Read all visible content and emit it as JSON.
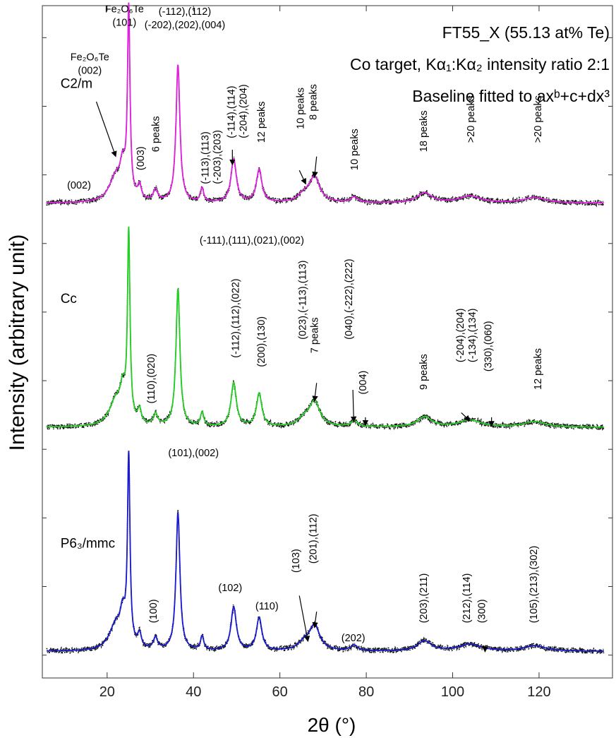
{
  "chart_data": {
    "type": "line",
    "title_lines": [
      "FT55_X (55.13 at% Te)",
      "Co target, Kα₁:Kα₂ intensity ratio 2:1",
      "Baseline fitted to axᵇ+c+dx³"
    ],
    "xlabel": "2θ (°)",
    "ylabel": "Intensity (arbitrary unit)",
    "xlim": [
      5,
      137
    ],
    "ylim": [
      -0.5,
      14.2
    ],
    "x_ticks": [
      20,
      40,
      60,
      80,
      100,
      120
    ],
    "grid": false,
    "colors": {
      "C2/m": "#e020e0",
      "Cc": "#22d022",
      "P63/mmc": "#1a1ad0",
      "data": "#111111"
    },
    "base_pattern": {
      "x_range": [
        6,
        135
      ],
      "background": 0.08,
      "peaks": [
        {
          "center": 22.0,
          "height": 0.55,
          "width": 1.8
        },
        {
          "center": 23.6,
          "height": 0.6,
          "width": 0.7
        },
        {
          "center": 25.0,
          "height": 4.1,
          "width": 0.35
        },
        {
          "center": 27.5,
          "height": 0.3,
          "width": 0.5
        },
        {
          "center": 31.2,
          "height": 0.25,
          "width": 0.6
        },
        {
          "center": 36.4,
          "height": 3.0,
          "width": 0.55
        },
        {
          "center": 42.0,
          "height": 0.3,
          "width": 0.45
        },
        {
          "center": 49.3,
          "height": 0.95,
          "width": 0.75
        },
        {
          "center": 55.2,
          "height": 0.72,
          "width": 0.75
        },
        {
          "center": 68.0,
          "height": 0.55,
          "width": 1.5
        },
        {
          "center": 65.5,
          "height": 0.15,
          "width": 1.5
        },
        {
          "center": 77.2,
          "height": 0.12,
          "width": 1.0
        },
        {
          "center": 93.5,
          "height": 0.22,
          "width": 2.0
        },
        {
          "center": 104.0,
          "height": 0.15,
          "width": 3.0
        },
        {
          "center": 119.0,
          "height": 0.12,
          "width": 3.0
        }
      ]
    },
    "series": [
      {
        "name": "C2/m",
        "offset": 9.8
      },
      {
        "name": "Cc",
        "offset": 4.9
      },
      {
        "name": "P63/mmc",
        "offset": 0.0
      }
    ],
    "annotations": [
      {
        "id": "c2m-fe-101",
        "lines": [
          "Fe₂O₆Te",
          "(101)"
        ],
        "x": 24.0,
        "y": 14.05,
        "rotate": 0
      },
      {
        "id": "c2m-fe-002",
        "lines": [
          "Fe₂O₆Te",
          "(002)"
        ],
        "x": 16.0,
        "y": 13.0,
        "rotate": 0
      },
      {
        "id": "c2m-002",
        "lines": [
          "(002)"
        ],
        "x": 13.5,
        "y": 10.2,
        "rotate": 0
      },
      {
        "id": "c2m-003",
        "lines": [
          "(003)"
        ],
        "x": 28.5,
        "y": 10.6,
        "rotate": -90
      },
      {
        "id": "c2m-6peaks",
        "lines": [
          "6 peaks"
        ],
        "x": 32.0,
        "y": 11.0,
        "rotate": -90
      },
      {
        "id": "c2m-112",
        "lines": [
          "(-112),(112)",
          "(-202),(202),(004)"
        ],
        "x": 38.0,
        "y": 14.0,
        "rotate": 0
      },
      {
        "id": "c2m-113",
        "lines": [
          "(-113),(113)",
          "(-203),(203)"
        ],
        "x": 43.5,
        "y": 10.3,
        "rotate": -90
      },
      {
        "id": "c2m-114",
        "lines": [
          "(-114),(114)",
          "(-204),(204)"
        ],
        "x": 49.5,
        "y": 11.3,
        "rotate": -90
      },
      {
        "id": "c2m-12peaks",
        "lines": [
          "12 peaks"
        ],
        "x": 56.5,
        "y": 11.2,
        "rotate": -90
      },
      {
        "id": "c2m-10peaks-a",
        "lines": [
          "10 peaks"
        ],
        "x": 65.5,
        "y": 11.5,
        "rotate": -90
      },
      {
        "id": "c2m-8peaks",
        "lines": [
          "8 peaks"
        ],
        "x": 68.5,
        "y": 11.7,
        "rotate": -90
      },
      {
        "id": "c2m-10peaks-b",
        "lines": [
          "10 peaks"
        ],
        "x": 78.0,
        "y": 10.6,
        "rotate": -90
      },
      {
        "id": "c2m-18peaks",
        "lines": [
          "18 peaks"
        ],
        "x": 94.0,
        "y": 11.0,
        "rotate": -90
      },
      {
        "id": "c2m-20peaks-a",
        "lines": [
          ">20 peaks"
        ],
        "x": 105.0,
        "y": 11.2,
        "rotate": -90
      },
      {
        "id": "c2m-20peaks-b",
        "lines": [
          ">20 peaks"
        ],
        "x": 120.5,
        "y": 11.2,
        "rotate": -90
      },
      {
        "id": "cc-111",
        "lines": [
          "(-111),(111),(021),(002)"
        ],
        "x": 53.5,
        "y": 9.0,
        "rotate": 0
      },
      {
        "id": "cc-110",
        "lines": [
          "(110),(020)"
        ],
        "x": 31.0,
        "y": 5.5,
        "rotate": -90
      },
      {
        "id": "cc-112",
        "lines": [
          "(-112),(112),(022)"
        ],
        "x": 50.5,
        "y": 6.5,
        "rotate": -90
      },
      {
        "id": "cc-200",
        "lines": [
          "(200),(130)"
        ],
        "x": 56.5,
        "y": 6.3,
        "rotate": -90
      },
      {
        "id": "cc-023",
        "lines": [
          "(023),(-113),(113)"
        ],
        "x": 66.0,
        "y": 6.9,
        "rotate": -90
      },
      {
        "id": "cc-7peaks",
        "lines": [
          "7 peaks"
        ],
        "x": 68.8,
        "y": 6.6,
        "rotate": -90
      },
      {
        "id": "cc-040",
        "lines": [
          "(040),(-222),(222)"
        ],
        "x": 76.7,
        "y": 6.9,
        "rotate": -90
      },
      {
        "id": "cc-004",
        "lines": [
          "(004)"
        ],
        "x": 80.0,
        "y": 5.7,
        "rotate": -90
      },
      {
        "id": "cc-9peaks",
        "lines": [
          "9 peaks"
        ],
        "x": 94.0,
        "y": 5.8,
        "rotate": -90
      },
      {
        "id": "cc-204",
        "lines": [
          "(-204),(204)",
          "(-134),(134)"
        ],
        "x": 102.5,
        "y": 6.4,
        "rotate": -90
      },
      {
        "id": "cc-330",
        "lines": [
          "(330),(060)"
        ],
        "x": 109.0,
        "y": 6.2,
        "rotate": -90
      },
      {
        "id": "cc-12peaks",
        "lines": [
          "12 peaks"
        ],
        "x": 120.5,
        "y": 5.8,
        "rotate": -90
      },
      {
        "id": "p6-101",
        "lines": [
          "(101),(002)"
        ],
        "x": 40.0,
        "y": 4.35,
        "rotate": 0
      },
      {
        "id": "p6-100",
        "lines": [
          "(100)"
        ],
        "x": 31.5,
        "y": 0.7,
        "rotate": -90
      },
      {
        "id": "p6-102",
        "lines": [
          "(102)"
        ],
        "x": 48.5,
        "y": 1.4,
        "rotate": 0
      },
      {
        "id": "p6-110",
        "lines": [
          "(110)"
        ],
        "x": 57.0,
        "y": 1.0,
        "rotate": 0
      },
      {
        "id": "p6-103",
        "lines": [
          "(103)"
        ],
        "x": 64.5,
        "y": 1.8,
        "rotate": -90
      },
      {
        "id": "p6-201",
        "lines": [
          "(201),(112)"
        ],
        "x": 68.5,
        "y": 2.0,
        "rotate": -90
      },
      {
        "id": "p6-202",
        "lines": [
          "(202)"
        ],
        "x": 77.0,
        "y": 0.3,
        "rotate": 0
      },
      {
        "id": "p6-203",
        "lines": [
          "(203),(211)"
        ],
        "x": 94.0,
        "y": 0.7,
        "rotate": -90
      },
      {
        "id": "p6-212",
        "lines": [
          "(212),(114)"
        ],
        "x": 104.0,
        "y": 0.7,
        "rotate": -90
      },
      {
        "id": "p6-300",
        "lines": [
          "(300)"
        ],
        "x": 107.5,
        "y": 0.7,
        "rotate": -90
      },
      {
        "id": "p6-105",
        "lines": [
          "(105),(213),(302)"
        ],
        "x": 119.5,
        "y": 0.7,
        "rotate": -90
      }
    ],
    "arrows": [
      {
        "from": [
          17.5,
          12.1
        ],
        "to": [
          22.0,
          10.9
        ]
      },
      {
        "from": [
          49.0,
          11.05
        ],
        "to": [
          49.0,
          10.72
        ]
      },
      {
        "from": [
          64.5,
          10.6
        ],
        "to": [
          66.0,
          10.3
        ]
      },
      {
        "from": [
          68.5,
          10.9
        ],
        "to": [
          68.0,
          10.45
        ]
      },
      {
        "from": [
          68.5,
          5.95
        ],
        "to": [
          68.0,
          5.55
        ]
      },
      {
        "from": [
          76.9,
          5.8
        ],
        "to": [
          77.1,
          5.1
        ]
      },
      {
        "from": [
          79.8,
          5.2
        ],
        "to": [
          79.8,
          5.02
        ]
      },
      {
        "from": [
          102.0,
          5.3
        ],
        "to": [
          104.0,
          5.12
        ]
      },
      {
        "from": [
          109.0,
          5.2
        ],
        "to": [
          109.0,
          5.0
        ]
      },
      {
        "from": [
          64.5,
          1.3
        ],
        "to": [
          66.5,
          0.3
        ]
      },
      {
        "from": [
          68.5,
          0.95
        ],
        "to": [
          68.0,
          0.6
        ]
      },
      {
        "from": [
          107.5,
          0.2
        ],
        "to": [
          107.5,
          0.07
        ]
      }
    ],
    "group_labels": [
      {
        "text": "C2/m",
        "x": 9.2,
        "y": 12.4
      },
      {
        "text": "Cc",
        "x": 9.2,
        "y": 7.7
      },
      {
        "text": "P6₃/mmc",
        "x": 9.2,
        "y": 2.35
      }
    ]
  }
}
